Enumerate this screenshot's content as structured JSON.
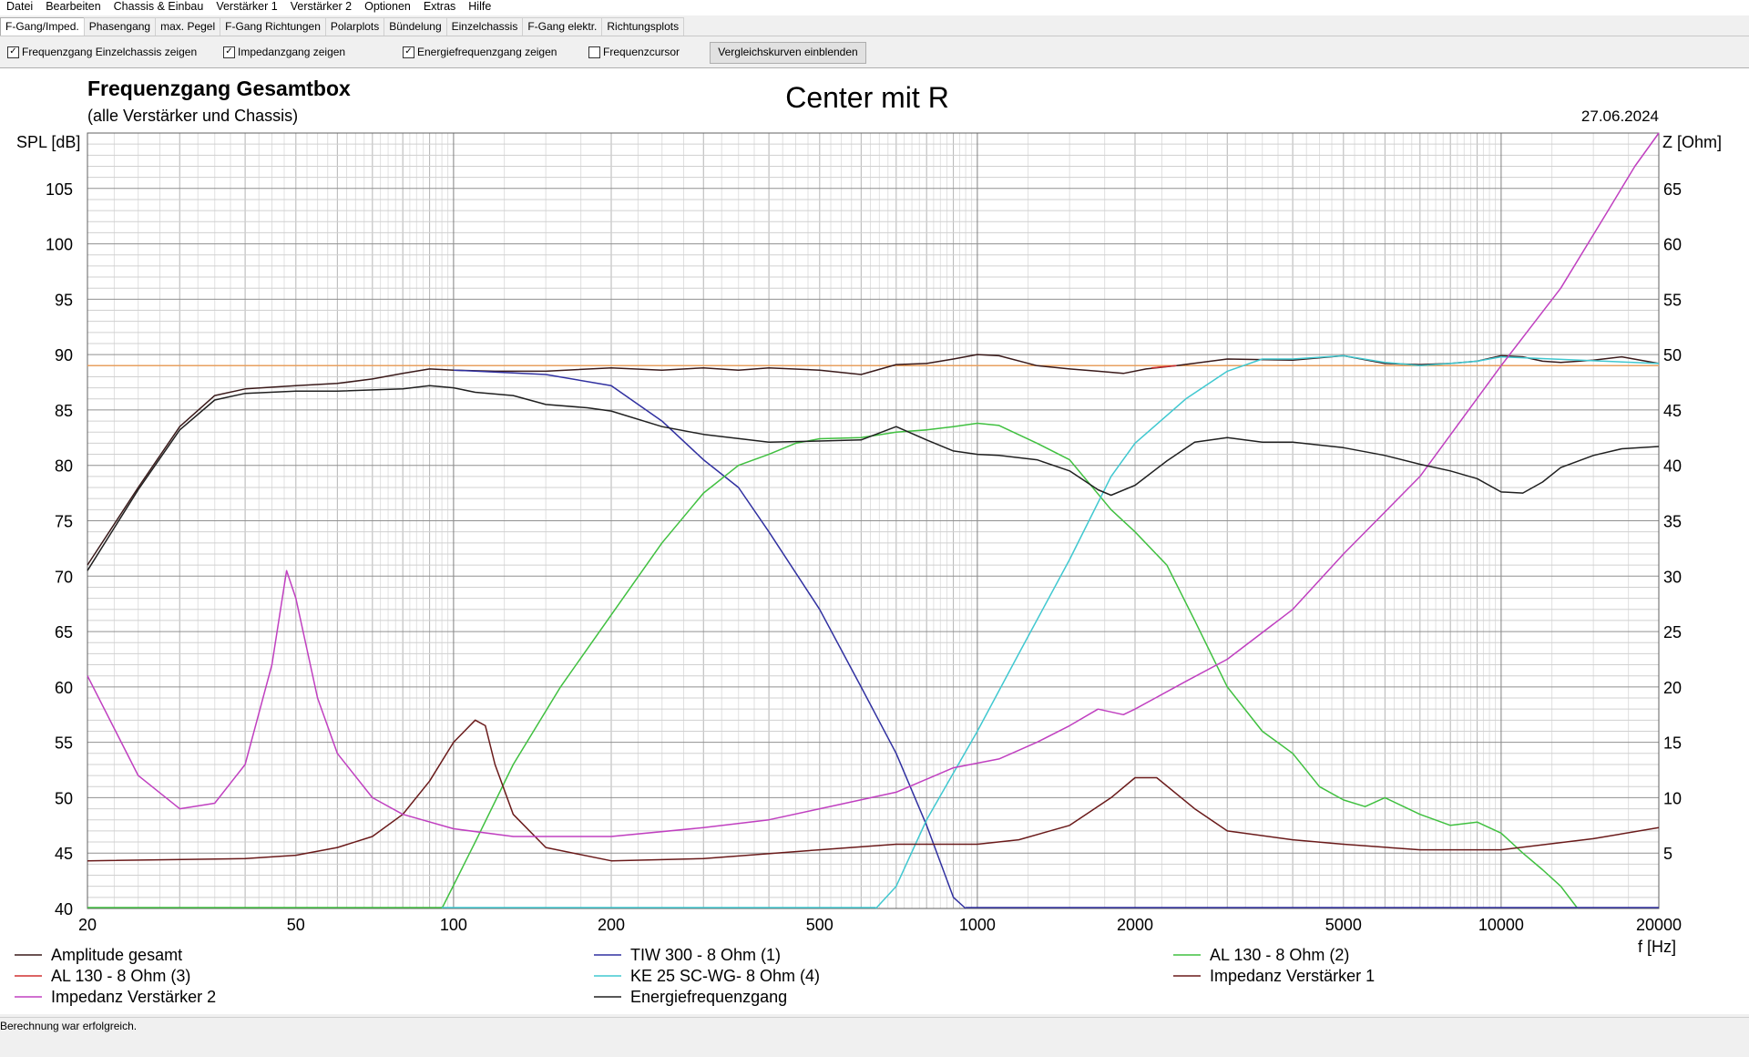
{
  "menu": [
    "Datei",
    "Bearbeiten",
    "Chassis & Einbau",
    "Verstärker 1",
    "Verstärker 2",
    "Optionen",
    "Extras",
    "Hilfe"
  ],
  "tabs": [
    {
      "label": "F-Gang/Imped.",
      "active": true
    },
    {
      "label": "Phasengang"
    },
    {
      "label": "max. Pegel"
    },
    {
      "label": "F-Gang Richtungen"
    },
    {
      "label": "Polarplots"
    },
    {
      "label": "Bündelung"
    },
    {
      "label": "Einzelchassis"
    },
    {
      "label": "F-Gang elektr."
    },
    {
      "label": "Richtungsplots"
    }
  ],
  "options": {
    "einzelchassis": {
      "label": "Frequenzgang Einzelchassis zeigen",
      "checked": true
    },
    "impedanz": {
      "label": "Impedanzgang zeigen",
      "checked": true
    },
    "energie": {
      "label": "Energiefrequenzgang zeigen",
      "checked": true
    },
    "cursor": {
      "label": "Frequenzcursor",
      "checked": false
    },
    "vergleich_button": "Vergleichskurven einblenden"
  },
  "status": "Berechnung war erfolgreich.",
  "chart_data": {
    "type": "line",
    "title": "Frequenzgang Gesamtbox",
    "subtitle": "(alle Verstärker und Chassis)",
    "center_title": "Center mit R",
    "date": "27.06.2024",
    "ylabel": "SPL [dB]",
    "y2label": "Z [Ohm]",
    "xlabel": "f [Hz]",
    "xscale": "log",
    "xlim": [
      20,
      20000
    ],
    "ylim": [
      40,
      110
    ],
    "y2lim": [
      0,
      70
    ],
    "xticks": [
      20,
      50,
      100,
      200,
      500,
      1000,
      2000,
      5000,
      10000,
      20000
    ],
    "yticks": [
      40,
      45,
      50,
      55,
      60,
      65,
      70,
      75,
      80,
      85,
      90,
      95,
      100,
      105
    ],
    "y2ticks": [
      5,
      10,
      15,
      20,
      25,
      30,
      35,
      40,
      45,
      50,
      55,
      60,
      65
    ],
    "reference_level": 89,
    "reference_color": "#e8a060",
    "grid": true,
    "legend_position": "bottom",
    "legend": [
      {
        "label": "Amplitude gesamt",
        "color": "#3a1a1a"
      },
      {
        "label": "TIW 300 - 8 Ohm (1)",
        "color": "#3030a0"
      },
      {
        "label": "AL 130 - 8 Ohm (2)",
        "color": "#40c040"
      },
      {
        "label": "AL 130 - 8 Ohm (3)",
        "color": "#d03030"
      },
      {
        "label": "KE 25 SC-WG- 8 Ohm    (4)",
        "color": "#40c8d0"
      },
      {
        "label": "Impedanz Verstärker 1",
        "color": "#6a1a1a"
      },
      {
        "label": "Impedanz Verstärker 2",
        "color": "#c040c0"
      },
      {
        "label": "Energiefrequenzgang",
        "color": "#202020"
      }
    ],
    "series": [
      {
        "name": "Amplitude gesamt",
        "color": "#3a1a1a",
        "axis": "left",
        "points": [
          [
            20,
            71
          ],
          [
            25,
            78
          ],
          [
            30,
            83.5
          ],
          [
            35,
            86.3
          ],
          [
            40,
            86.9
          ],
          [
            50,
            87.2
          ],
          [
            60,
            87.4
          ],
          [
            70,
            87.8
          ],
          [
            80,
            88.3
          ],
          [
            90,
            88.7
          ],
          [
            100,
            88.6
          ],
          [
            120,
            88.5
          ],
          [
            150,
            88.5
          ],
          [
            200,
            88.8
          ],
          [
            250,
            88.6
          ],
          [
            300,
            88.8
          ],
          [
            350,
            88.6
          ],
          [
            400,
            88.8
          ],
          [
            500,
            88.6
          ],
          [
            600,
            88.2
          ],
          [
            700,
            89.1
          ],
          [
            800,
            89.2
          ],
          [
            900,
            89.6
          ],
          [
            1000,
            90
          ],
          [
            1100,
            89.9
          ],
          [
            1300,
            89
          ],
          [
            1500,
            88.7
          ],
          [
            1700,
            88.5
          ],
          [
            1900,
            88.3
          ],
          [
            2100,
            88.7
          ],
          [
            2400,
            89
          ],
          [
            3000,
            89.6
          ],
          [
            4000,
            89.5
          ],
          [
            5000,
            89.9
          ],
          [
            6000,
            89.2
          ],
          [
            7000,
            89.1
          ],
          [
            8000,
            89.2
          ],
          [
            9000,
            89.4
          ],
          [
            10000,
            89.9
          ],
          [
            11000,
            89.8
          ],
          [
            12000,
            89.4
          ],
          [
            13000,
            89.3
          ],
          [
            15000,
            89.5
          ],
          [
            17000,
            89.8
          ],
          [
            20000,
            89.2
          ]
        ]
      },
      {
        "name": "TIW 300 - 8 Ohm (1)",
        "color": "#3030a0",
        "axis": "left",
        "points": [
          [
            100,
            88.6
          ],
          [
            150,
            88.2
          ],
          [
            200,
            87.2
          ],
          [
            250,
            84
          ],
          [
            300,
            80.5
          ],
          [
            350,
            78
          ],
          [
            400,
            74
          ],
          [
            500,
            67
          ],
          [
            600,
            60
          ],
          [
            700,
            54
          ],
          [
            800,
            47.5
          ],
          [
            900,
            41
          ],
          [
            950,
            40
          ]
        ]
      },
      {
        "name": "AL 130 - 8 Ohm (2)",
        "color": "#40c040",
        "axis": "left",
        "points": [
          [
            95,
            40
          ],
          [
            110,
            46
          ],
          [
            130,
            53
          ],
          [
            160,
            60
          ],
          [
            200,
            66.5
          ],
          [
            250,
            73
          ],
          [
            300,
            77.5
          ],
          [
            350,
            80
          ],
          [
            400,
            81
          ],
          [
            450,
            82
          ],
          [
            500,
            82.4
          ],
          [
            600,
            82.5
          ],
          [
            700,
            83
          ],
          [
            800,
            83.2
          ],
          [
            900,
            83.5
          ],
          [
            1000,
            83.8
          ],
          [
            1100,
            83.6
          ],
          [
            1300,
            82
          ],
          [
            1500,
            80.5
          ],
          [
            1800,
            76
          ],
          [
            2000,
            74
          ],
          [
            2300,
            71
          ],
          [
            2600,
            66
          ],
          [
            3000,
            60
          ],
          [
            3500,
            56
          ],
          [
            4000,
            54
          ],
          [
            4500,
            51
          ],
          [
            5000,
            49.8
          ],
          [
            5500,
            49.2
          ],
          [
            6000,
            50
          ],
          [
            7000,
            48.5
          ],
          [
            8000,
            47.5
          ],
          [
            9000,
            47.8
          ],
          [
            10000,
            46.8
          ],
          [
            11000,
            45
          ],
          [
            12000,
            43.5
          ],
          [
            13000,
            42
          ],
          [
            14000,
            40
          ]
        ]
      },
      {
        "name": "AL 130 - 8 Ohm (3)",
        "color": "#d03030",
        "axis": "left",
        "points": [
          [
            2150,
            88.8
          ],
          [
            2400,
            89
          ]
        ]
      },
      {
        "name": "KE 25 SC-WG- 8 Ohm    (4)",
        "color": "#40c8d0",
        "axis": "left",
        "points": [
          [
            640,
            40
          ],
          [
            700,
            42
          ],
          [
            800,
            48
          ],
          [
            1000,
            56
          ],
          [
            1200,
            63
          ],
          [
            1500,
            71.5
          ],
          [
            1800,
            79
          ],
          [
            2000,
            82
          ],
          [
            2500,
            86
          ],
          [
            3000,
            88.5
          ],
          [
            3500,
            89.6
          ],
          [
            4000,
            89.6
          ],
          [
            5000,
            89.9
          ],
          [
            6000,
            89.3
          ],
          [
            7000,
            89
          ],
          [
            8000,
            89.2
          ],
          [
            9000,
            89.4
          ],
          [
            10000,
            89.8
          ],
          [
            20000,
            89.2
          ]
        ]
      },
      {
        "name": "Impedanz Verstärker 1",
        "color": "#6a1a1a",
        "axis": "right",
        "points": [
          [
            20,
            4.3
          ],
          [
            40,
            4.5
          ],
          [
            50,
            4.8
          ],
          [
            60,
            5.5
          ],
          [
            70,
            6.5
          ],
          [
            80,
            8.5
          ],
          [
            90,
            11.5
          ],
          [
            100,
            15
          ],
          [
            110,
            17
          ],
          [
            115,
            16.5
          ],
          [
            120,
            13
          ],
          [
            130,
            8.5
          ],
          [
            150,
            5.5
          ],
          [
            200,
            4.3
          ],
          [
            300,
            4.5
          ],
          [
            500,
            5.3
          ],
          [
            700,
            5.8
          ],
          [
            1000,
            5.8
          ],
          [
            1200,
            6.2
          ],
          [
            1500,
            7.5
          ],
          [
            1800,
            10
          ],
          [
            2000,
            11.8
          ],
          [
            2200,
            11.8
          ],
          [
            2600,
            9
          ],
          [
            3000,
            7
          ],
          [
            4000,
            6.2
          ],
          [
            5000,
            5.8
          ],
          [
            7000,
            5.3
          ],
          [
            10000,
            5.3
          ],
          [
            15000,
            6.3
          ],
          [
            20000,
            7.3
          ]
        ]
      },
      {
        "name": "Impedanz Verstärker 2",
        "color": "#c040c0",
        "axis": "right",
        "points": [
          [
            20,
            21
          ],
          [
            25,
            12
          ],
          [
            30,
            9
          ],
          [
            35,
            9.5
          ],
          [
            40,
            13
          ],
          [
            45,
            22
          ],
          [
            48,
            30.5
          ],
          [
            50,
            28
          ],
          [
            55,
            19
          ],
          [
            60,
            14
          ],
          [
            70,
            10
          ],
          [
            80,
            8.5
          ],
          [
            100,
            7.2
          ],
          [
            130,
            6.5
          ],
          [
            200,
            6.5
          ],
          [
            300,
            7.3
          ],
          [
            400,
            8
          ],
          [
            500,
            9
          ],
          [
            700,
            10.5
          ],
          [
            900,
            12.7
          ],
          [
            1100,
            13.5
          ],
          [
            1300,
            15
          ],
          [
            1500,
            16.5
          ],
          [
            1700,
            18
          ],
          [
            1900,
            17.5
          ],
          [
            2000,
            18
          ],
          [
            2500,
            20.5
          ],
          [
            3000,
            22.5
          ],
          [
            4000,
            27
          ],
          [
            5000,
            32
          ],
          [
            7000,
            39
          ],
          [
            10000,
            49
          ],
          [
            13000,
            56
          ],
          [
            16000,
            63
          ],
          [
            18000,
            67
          ],
          [
            20000,
            70
          ]
        ]
      },
      {
        "name": "Energiefrequenzgang",
        "color": "#202020",
        "axis": "left",
        "points": [
          [
            20,
            70.5
          ],
          [
            25,
            77.8
          ],
          [
            30,
            83.2
          ],
          [
            35,
            85.9
          ],
          [
            40,
            86.5
          ],
          [
            50,
            86.7
          ],
          [
            60,
            86.7
          ],
          [
            80,
            86.9
          ],
          [
            90,
            87.2
          ],
          [
            100,
            87
          ],
          [
            110,
            86.6
          ],
          [
            130,
            86.3
          ],
          [
            150,
            85.5
          ],
          [
            180,
            85.2
          ],
          [
            200,
            84.9
          ],
          [
            250,
            83.5
          ],
          [
            300,
            82.8
          ],
          [
            400,
            82.1
          ],
          [
            500,
            82.2
          ],
          [
            600,
            82.3
          ],
          [
            700,
            83.5
          ],
          [
            800,
            82.3
          ],
          [
            900,
            81.3
          ],
          [
            1000,
            81
          ],
          [
            1100,
            80.9
          ],
          [
            1300,
            80.5
          ],
          [
            1500,
            79.5
          ],
          [
            1700,
            77.8
          ],
          [
            1800,
            77.3
          ],
          [
            2000,
            78.2
          ],
          [
            2300,
            80.4
          ],
          [
            2600,
            82.1
          ],
          [
            3000,
            82.5
          ],
          [
            3500,
            82.1
          ],
          [
            4000,
            82.1
          ],
          [
            5000,
            81.6
          ],
          [
            6000,
            80.9
          ],
          [
            7000,
            80.1
          ],
          [
            8000,
            79.5
          ],
          [
            9000,
            78.8
          ],
          [
            10000,
            77.6
          ],
          [
            11000,
            77.5
          ],
          [
            12000,
            78.5
          ],
          [
            13000,
            79.8
          ],
          [
            15000,
            80.9
          ],
          [
            17000,
            81.5
          ],
          [
            20000,
            81.7
          ]
        ]
      }
    ]
  }
}
